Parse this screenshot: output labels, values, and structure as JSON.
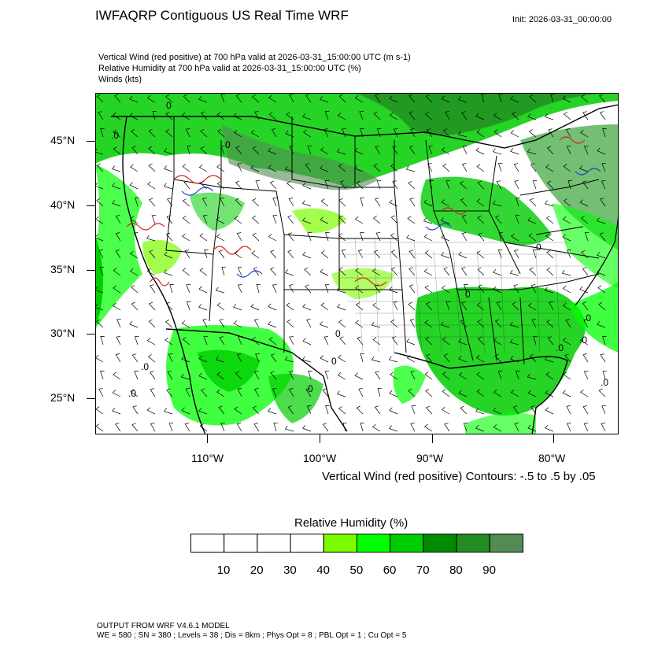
{
  "header": {
    "title": "IWFAQRP Contiguous US Real Time WRF",
    "init": "Init: 2026-03-31_00:00:00"
  },
  "subtitles": [
    "Vertical Wind (red positive) at 700 hPa valid at 2026-03-31_15:00:00 UTC   (m s-1)",
    "Relative Humidity at 700 hPa valid at 2026-03-31_15:00:00 UTC   (%)",
    "Winds   (kts)"
  ],
  "map": {
    "lat_labels": [
      "45°N",
      "40°N",
      "35°N",
      "30°N",
      "25°N"
    ],
    "lon_labels": [
      "110°W",
      "100°W",
      "90°W",
      "80°W"
    ],
    "contour_text": "Vertical Wind (red positive) Contours: -.5 to .5 by .05",
    "contour_zero_label": "0",
    "contour_zero_label_alt": ".0",
    "colors": {
      "updraft": "#d42020",
      "downdraft": "#1a3fd6",
      "state_lines": "#000000"
    }
  },
  "colorbar": {
    "title": "Relative Humidity  (%)",
    "labels": [
      "10",
      "20",
      "30",
      "40",
      "50",
      "60",
      "70",
      "80",
      "90"
    ],
    "colors": [
      "#ffffff",
      "#ffffff",
      "#ffffff",
      "#ffffff",
      "#7cfc00",
      "#00ff00",
      "#00cd00",
      "#008b00",
      "#228b22",
      "#548b54"
    ]
  },
  "footer": {
    "line1": "OUTPUT FROM WRF V4.6.1 MODEL",
    "line2": "WE = 580 ; SN = 380 ; Levels = 38 ; Dis = 8km ; Phys Opt = 8 ; PBL Opt = 1 ; Cu Opt = 5"
  }
}
